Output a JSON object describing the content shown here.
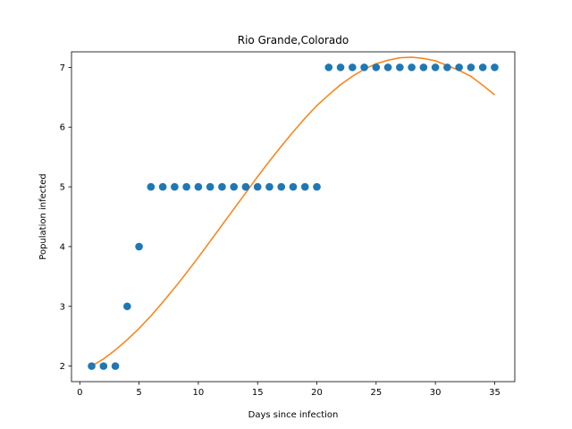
{
  "chart_data": {
    "type": "scatter",
    "title": "Rio Grande,Colorado",
    "xlabel": "Days since infection",
    "ylabel": "Population infected",
    "xlim": [
      -0.7,
      36.7
    ],
    "ylim": [
      1.74,
      7.26
    ],
    "xticks": [
      0,
      5,
      10,
      15,
      20,
      25,
      30,
      35
    ],
    "yticks": [
      2,
      3,
      4,
      5,
      6,
      7
    ],
    "grid": false,
    "colors": {
      "points": "#1f77b4",
      "fit": "#ff7f0e"
    },
    "series": [
      {
        "type": "scatter",
        "x": [
          1,
          2,
          3,
          4,
          5,
          6,
          7,
          8,
          9,
          10,
          11,
          12,
          13,
          14,
          15,
          16,
          17,
          18,
          19,
          20,
          21,
          22,
          23,
          24,
          25,
          26,
          27,
          28,
          29,
          30,
          31,
          32,
          33,
          34,
          35
        ],
        "y": [
          2,
          2,
          2,
          3,
          4,
          5,
          5,
          5,
          5,
          5,
          5,
          5,
          5,
          5,
          5,
          5,
          5,
          5,
          5,
          5,
          7,
          7,
          7,
          7,
          7,
          7,
          7,
          7,
          7,
          7,
          7,
          7,
          7,
          7,
          7
        ]
      },
      {
        "type": "line",
        "x": [
          1,
          2,
          3,
          4,
          5,
          6,
          7,
          8,
          9,
          10,
          11,
          12,
          13,
          14,
          15,
          16,
          17,
          18,
          19,
          20,
          21,
          22,
          23,
          24,
          25,
          26,
          27,
          28,
          29,
          30,
          31,
          32,
          33,
          34,
          35
        ],
        "y": [
          2.0,
          2.12,
          2.27,
          2.44,
          2.63,
          2.84,
          3.07,
          3.31,
          3.56,
          3.82,
          4.09,
          4.36,
          4.63,
          4.9,
          5.17,
          5.43,
          5.68,
          5.92,
          6.15,
          6.36,
          6.54,
          6.71,
          6.85,
          6.97,
          7.06,
          7.12,
          7.16,
          7.17,
          7.15,
          7.11,
          7.03,
          6.95,
          6.85,
          6.7,
          6.54
        ]
      }
    ]
  }
}
